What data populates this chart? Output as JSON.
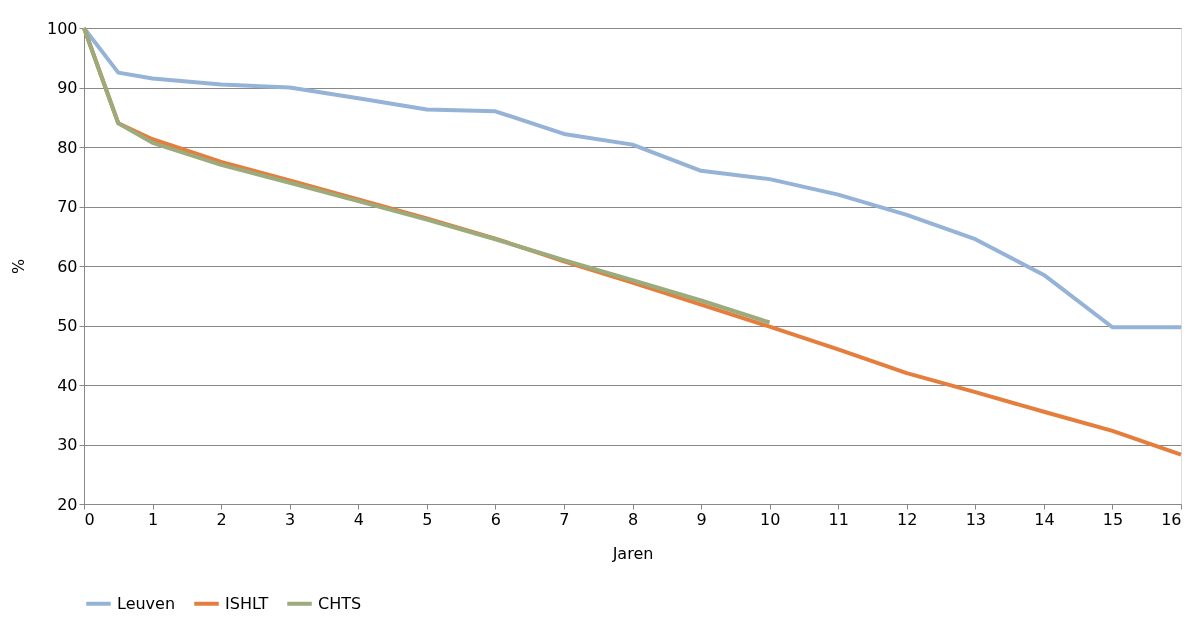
{
  "chart_data": {
    "type": "line",
    "xlabel": "Jaren",
    "ylabel": "%",
    "x": [
      0,
      0.5,
      1,
      2,
      3,
      4,
      5,
      6,
      7,
      8,
      9,
      10,
      11,
      12,
      13,
      14,
      15,
      16
    ],
    "series": [
      {
        "name": "Leuven",
        "color": "#95b3d7",
        "values": [
          100,
          92.5,
          91.5,
          90.5,
          90,
          88.2,
          86.3,
          86,
          82.2,
          80.4,
          76,
          74.6,
          72,
          68.6,
          64.5,
          58.5,
          49.7,
          49.7
        ]
      },
      {
        "name": "ISHLT",
        "color": "#e57e3c",
        "values": [
          100,
          84,
          81.3,
          77.5,
          74.4,
          71.2,
          68,
          64.6,
          60.8,
          57.2,
          53.5,
          49.8,
          46,
          42,
          38.8,
          35.5,
          32.3,
          28.3
        ]
      },
      {
        "name": "CHTS",
        "color": "#9bab7c",
        "values": [
          100,
          84,
          80.7,
          77,
          74,
          70.9,
          67.8,
          64.5,
          61,
          57.6,
          54.2,
          50.5,
          null,
          null,
          null,
          null,
          null,
          null
        ]
      }
    ],
    "xlim": [
      0,
      16
    ],
    "xticks": [
      0,
      1,
      2,
      3,
      4,
      5,
      6,
      7,
      8,
      9,
      10,
      11,
      12,
      13,
      14,
      15,
      16
    ],
    "ylim": [
      20,
      100
    ],
    "yticks": [
      20,
      30,
      40,
      50,
      60,
      70,
      80,
      90,
      100
    ],
    "grid": "y",
    "legend": "bottom",
    "marker": "none",
    "line_style": "solid"
  }
}
